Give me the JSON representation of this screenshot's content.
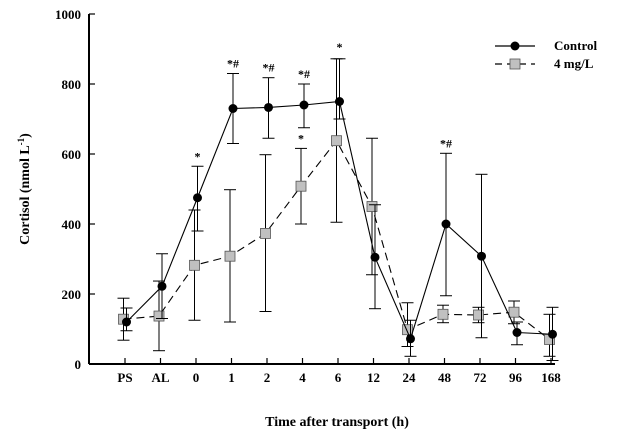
{
  "chart_data": {
    "type": "line",
    "xlabel": "Time after transport (h)",
    "ylabel": "Cortisol (nmol L",
    "ylabel_sup": "-1",
    "ylabel_close": ")",
    "categories": [
      "PS",
      "AL",
      "0",
      "1",
      "2",
      "4",
      "6",
      "12",
      "24",
      "48",
      "72",
      "96",
      "168"
    ],
    "ylim": [
      0,
      1000
    ],
    "yticks": [
      "0",
      "200",
      "400",
      "600",
      "800",
      "1000"
    ],
    "yticks_values": [
      0,
      200,
      400,
      600,
      800,
      1000
    ],
    "legend_position": "top-right",
    "series": [
      {
        "name": "Control",
        "marker": "circle",
        "line_style": "solid",
        "color": "#000000",
        "values": [
          120,
          222,
          475,
          730,
          733,
          740,
          750,
          305,
          72,
          400,
          308,
          90,
          85
        ],
        "err_low": [
          95,
          130,
          380,
          630,
          645,
          675,
          700,
          158,
          22,
          195,
          75,
          55,
          10
        ],
        "err_high": [
          160,
          315,
          565,
          830,
          818,
          800,
          872,
          455,
          125,
          602,
          542,
          120,
          162
        ],
        "annotations": [
          "",
          "",
          "*",
          "*#",
          "*#",
          "*#",
          "*",
          "",
          "",
          "*#",
          "",
          "",
          ""
        ]
      },
      {
        "name": "4 mg/L",
        "marker": "square",
        "line_style": "dashed",
        "color": "#c0c0c0",
        "values": [
          128,
          137,
          282,
          308,
          373,
          508,
          638,
          450,
          98,
          142,
          140,
          148,
          70
        ],
        "err_low": [
          68,
          38,
          125,
          120,
          150,
          400,
          405,
          255,
          50,
          118,
          118,
          115,
          22
        ],
        "err_high": [
          188,
          237,
          440,
          498,
          598,
          616,
          872,
          645,
          175,
          168,
          162,
          180,
          142
        ],
        "annotations": [
          "",
          "",
          "",
          "",
          "",
          "*",
          "*",
          "",
          "",
          "",
          "",
          "",
          ""
        ]
      }
    ]
  }
}
